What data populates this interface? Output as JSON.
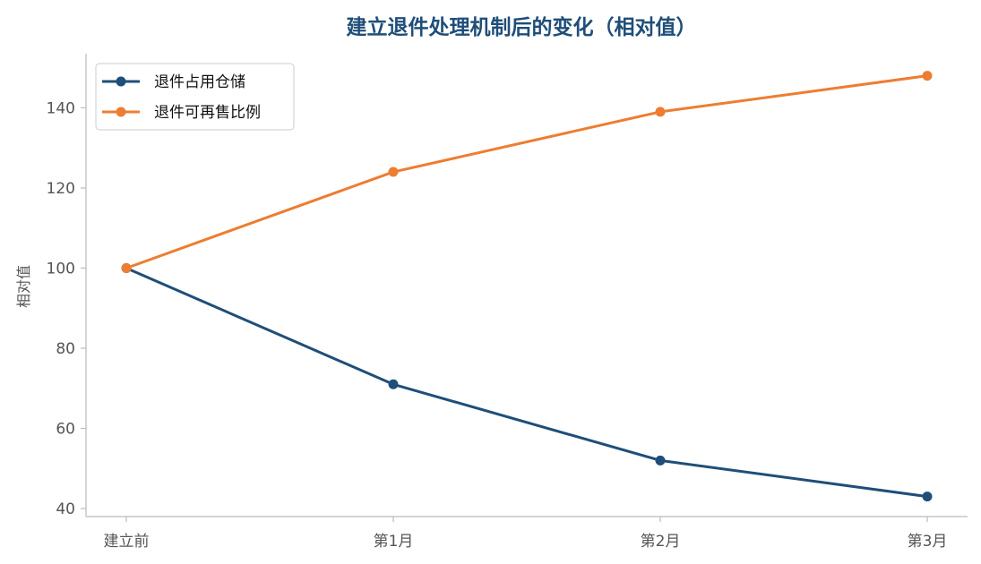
{
  "chart_data": {
    "type": "line",
    "title": "建立退件处理机制后的变化（相对值）",
    "xlabel": "",
    "ylabel": "相对值",
    "categories": [
      "建立前",
      "第1月",
      "第2月",
      "第3月"
    ],
    "series": [
      {
        "name": "退件占用仓储",
        "values": [
          100,
          71,
          52,
          43
        ],
        "color": "#1f4e79"
      },
      {
        "name": "退件可再售比例",
        "values": [
          100,
          124,
          139,
          148
        ],
        "color": "#ed7d31"
      }
    ],
    "yticks": [
      40,
      60,
      80,
      100,
      120,
      140
    ],
    "ylim": [
      38,
      153.5
    ],
    "grid": false,
    "legend_position": "top-left",
    "axis_color": "#bbbbbb"
  }
}
